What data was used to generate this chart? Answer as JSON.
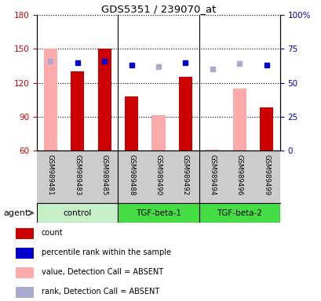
{
  "title": "GDS5351 / 239070_at",
  "samples": [
    "GSM989481",
    "GSM989483",
    "GSM989485",
    "GSM989488",
    "GSM989490",
    "GSM989492",
    "GSM989494",
    "GSM989496",
    "GSM989499"
  ],
  "count_values": [
    null,
    130,
    150,
    108,
    null,
    125,
    null,
    null,
    98
  ],
  "count_absent_values": [
    150,
    null,
    null,
    null,
    91,
    null,
    61,
    115,
    null
  ],
  "rank_values": [
    null,
    65,
    66,
    63,
    null,
    65,
    null,
    null,
    63
  ],
  "rank_absent_values": [
    66,
    null,
    null,
    null,
    62,
    null,
    60,
    64,
    null
  ],
  "ylim_left": [
    60,
    180
  ],
  "ylim_right": [
    0,
    100
  ],
  "yticks_left": [
    60,
    90,
    120,
    150,
    180
  ],
  "yticks_right": [
    0,
    25,
    50,
    75,
    100
  ],
  "ytick_labels_right": [
    "0",
    "25",
    "50",
    "75",
    "100%"
  ],
  "groups_info": [
    {
      "name": "control",
      "start": 0,
      "end": 2,
      "color": "#c8f0c8"
    },
    {
      "name": "TGF-beta-1",
      "start": 3,
      "end": 5,
      "color": "#44dd44"
    },
    {
      "name": "TGF-beta-2",
      "start": 6,
      "end": 8,
      "color": "#44dd44"
    }
  ],
  "group_boundaries": [
    2.5,
    5.5
  ],
  "agent_label": "agent",
  "legend_labels": [
    "count",
    "percentile rank within the sample",
    "value, Detection Call = ABSENT",
    "rank, Detection Call = ABSENT"
  ],
  "count_color": "#cc0000",
  "rank_color": "#0000cc",
  "count_absent_color": "#ffaaaa",
  "rank_absent_color": "#aaaacc",
  "axis_color_left": "#cc0000",
  "axis_color_right": "#0000cc",
  "xlabel_bg": "#cccccc",
  "bar_width": 0.5
}
